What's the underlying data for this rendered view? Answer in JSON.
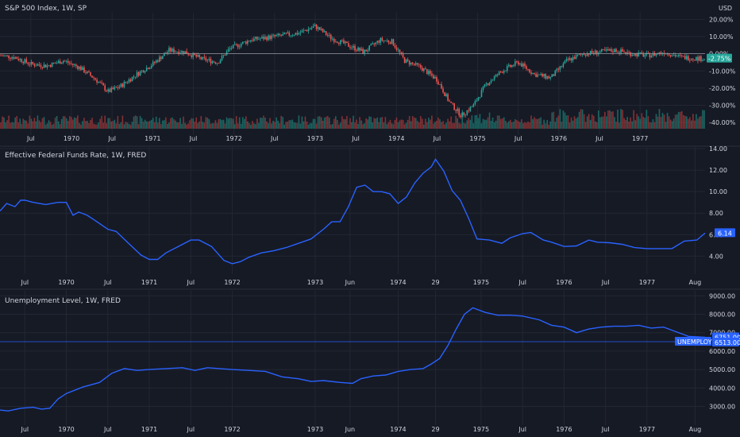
{
  "chart_data": [
    {
      "type": "candlestick",
      "title": "S&P 500 Index, 1W, SP",
      "currency_label": "USD",
      "y_scale": "percent",
      "y_ticks": [
        "20.00%",
        "10.00%",
        "0.00%",
        "-10.00%",
        "-20.00%",
        "-30.00%",
        "-40.00%"
      ],
      "ylim": [
        -45,
        22
      ],
      "last_value_label": "-2.75%",
      "colors": {
        "up": "#26a69a",
        "down": "#ef5350",
        "volume_up": "#1d7f77",
        "volume_down": "#a83a3a",
        "badge": "#26a69a"
      },
      "x_ticks": [
        "Jul",
        "1970",
        "Jul",
        "1971",
        "Jul",
        "1972",
        "Jul",
        "1973",
        "Jul",
        "1974",
        "Jul",
        "1975",
        "Jul",
        "1976",
        "Jul",
        "1977"
      ],
      "x_tick_dates": [
        1969.5,
        1970.0,
        1970.5,
        1971.0,
        1971.5,
        1972.0,
        1972.5,
        1973.0,
        1973.5,
        1974.0,
        1974.5,
        1975.0,
        1975.5,
        1976.0,
        1976.5,
        1977.0
      ],
      "xlim": [
        1969.12,
        1977.8
      ],
      "series_anchor": {
        "x": [
          1969.12,
          1969.3,
          1969.5,
          1969.7,
          1969.9,
          1970.1,
          1970.3,
          1970.45,
          1970.6,
          1970.8,
          1971.0,
          1971.2,
          1971.4,
          1971.6,
          1971.8,
          1971.95,
          1972.2,
          1972.5,
          1972.8,
          1973.0,
          1973.2,
          1973.4,
          1973.6,
          1973.8,
          1973.95,
          1974.1,
          1974.3,
          1974.5,
          1974.65,
          1974.8,
          1974.95,
          1975.1,
          1975.3,
          1975.5,
          1975.7,
          1975.9,
          1976.1,
          1976.3,
          1976.5,
          1976.7,
          1976.9,
          1977.1,
          1977.3,
          1977.5,
          1977.8
        ],
        "y": [
          -1,
          -2,
          -6,
          -7,
          -4,
          -8,
          -15,
          -22,
          -19,
          -12,
          -6,
          2,
          1,
          -3,
          -5,
          3,
          8,
          10,
          12,
          16,
          9,
          5,
          1,
          8,
          7,
          -4,
          -8,
          -15,
          -28,
          -36,
          -30,
          -18,
          -10,
          -5,
          -12,
          -14,
          -4,
          0,
          1,
          2,
          0,
          -1,
          1,
          -2,
          -3
        ]
      },
      "volume_range": [
        0.3,
        1.0
      ]
    },
    {
      "type": "line",
      "title": "Effective Federal Funds Rate, 1W, FRED",
      "y_ticks": [
        "14.00",
        "12.00",
        "10.00",
        "8.00",
        "6.00",
        "4.00"
      ],
      "ylim": [
        2.7,
        14
      ],
      "last_value_label": "6.14",
      "colors": {
        "line": "#2962ff",
        "badge": "#2962ff"
      },
      "x_ticks": [
        "Jul",
        "1970",
        "Jul",
        "1971",
        "Jul",
        "1972",
        "1973",
        "Jun",
        "1974",
        "29",
        "1975",
        "Jul",
        "1976",
        "Jul",
        "1977",
        "Aug"
      ],
      "x_tick_dates": [
        1969.5,
        1970.0,
        1970.5,
        1971.0,
        1971.5,
        1972.0,
        1973.0,
        1973.42,
        1974.0,
        1974.45,
        1975.0,
        1975.5,
        1976.0,
        1976.5,
        1977.0,
        1977.58
      ],
      "xlim": [
        1969.2,
        1977.7
      ],
      "series": [
        {
          "x": [
            1969.2,
            1969.28,
            1969.38,
            1969.45,
            1969.5,
            1969.6,
            1969.75,
            1969.9,
            1970.0,
            1970.08,
            1970.15,
            1970.25,
            1970.35,
            1970.5,
            1970.6,
            1970.75,
            1970.9,
            1971.0,
            1971.1,
            1971.2,
            1971.35,
            1971.5,
            1971.6,
            1971.75,
            1971.9,
            1972.0,
            1972.1,
            1972.2,
            1972.35,
            1972.5,
            1972.65,
            1972.8,
            1972.95,
            1973.1,
            1973.2,
            1973.3,
            1973.4,
            1973.5,
            1973.6,
            1973.7,
            1973.8,
            1973.9,
            1974.0,
            1974.1,
            1974.2,
            1974.3,
            1974.4,
            1974.45,
            1974.55,
            1974.65,
            1974.75,
            1974.85,
            1974.95,
            1975.1,
            1975.25,
            1975.35,
            1975.5,
            1975.6,
            1975.75,
            1975.85,
            1976.0,
            1976.15,
            1976.3,
            1976.4,
            1976.55,
            1976.7,
            1976.85,
            1977.0,
            1977.15,
            1977.3,
            1977.45,
            1977.6,
            1977.7
          ],
          "y": [
            8.2,
            8.9,
            8.6,
            9.2,
            9.2,
            9.0,
            8.8,
            9.0,
            9.0,
            7.8,
            8.1,
            7.8,
            7.3,
            6.5,
            6.3,
            5.2,
            4.1,
            3.7,
            3.7,
            4.3,
            4.9,
            5.5,
            5.5,
            4.9,
            3.6,
            3.3,
            3.5,
            3.9,
            4.3,
            4.5,
            4.8,
            5.2,
            5.6,
            6.5,
            7.2,
            7.2,
            8.6,
            10.4,
            10.6,
            10.0,
            10.0,
            9.8,
            8.9,
            9.5,
            10.8,
            11.7,
            12.3,
            13.0,
            11.9,
            10.1,
            9.2,
            7.5,
            5.6,
            5.5,
            5.2,
            5.7,
            6.1,
            6.2,
            5.5,
            5.3,
            4.9,
            4.95,
            5.5,
            5.3,
            5.25,
            5.1,
            4.8,
            4.7,
            4.7,
            4.7,
            5.4,
            5.5,
            6.14
          ]
        }
      ]
    },
    {
      "type": "line",
      "title": "Unemployment Level, 1W, FRED",
      "y_ticks": [
        "9000.00",
        "8000.00",
        "7000.00",
        "6000.00",
        "5000.00",
        "4000.00",
        "3000.00"
      ],
      "ylim": [
        2200,
        9100
      ],
      "last_value_label": "6751.00",
      "hline_label": "UNEMPLOY",
      "hline_value_label": "6513.00",
      "hline_value": 6513,
      "colors": {
        "line": "#2962ff",
        "badge": "#2962ff",
        "hline": "#2962ff"
      },
      "x_ticks": [
        "Jul",
        "1970",
        "Jul",
        "1971",
        "Jul",
        "1972",
        "1973",
        "Jun",
        "1974",
        "29",
        "1975",
        "Jul",
        "1976",
        "Jul",
        "1977",
        "Aug"
      ],
      "x_tick_dates": [
        1969.5,
        1970.0,
        1970.5,
        1971.0,
        1971.5,
        1972.0,
        1973.0,
        1973.42,
        1974.0,
        1974.45,
        1975.0,
        1975.5,
        1976.0,
        1976.5,
        1977.0,
        1977.58
      ],
      "xlim": [
        1969.2,
        1977.7
      ],
      "series": [
        {
          "x": [
            1969.2,
            1969.3,
            1969.45,
            1969.6,
            1969.7,
            1969.8,
            1969.9,
            1970.0,
            1970.2,
            1970.4,
            1970.55,
            1970.7,
            1970.85,
            1971.0,
            1971.2,
            1971.4,
            1971.55,
            1971.7,
            1971.85,
            1972.0,
            1972.2,
            1972.4,
            1972.6,
            1972.8,
            1972.95,
            1973.1,
            1973.3,
            1973.45,
            1973.55,
            1973.7,
            1973.85,
            1974.0,
            1974.15,
            1974.3,
            1974.4,
            1974.5,
            1974.6,
            1974.7,
            1974.8,
            1974.9,
            1975.05,
            1975.2,
            1975.35,
            1975.5,
            1975.7,
            1975.85,
            1976.0,
            1976.15,
            1976.3,
            1976.45,
            1976.6,
            1976.75,
            1976.9,
            1977.05,
            1977.2,
            1977.35,
            1977.5,
            1977.7
          ],
          "y": [
            2800,
            2750,
            2900,
            2950,
            2850,
            2900,
            3400,
            3700,
            4050,
            4300,
            4800,
            5050,
            4950,
            5000,
            5050,
            5100,
            4950,
            5100,
            5050,
            5000,
            4950,
            4900,
            4600,
            4500,
            4350,
            4400,
            4300,
            4250,
            4500,
            4650,
            4700,
            4900,
            5000,
            5050,
            5300,
            5600,
            6300,
            7200,
            8000,
            8350,
            8100,
            7950,
            7950,
            7900,
            7700,
            7400,
            7300,
            7000,
            7200,
            7300,
            7350,
            7350,
            7400,
            7250,
            7300,
            7050,
            6800,
            6751
          ]
        }
      ]
    }
  ]
}
